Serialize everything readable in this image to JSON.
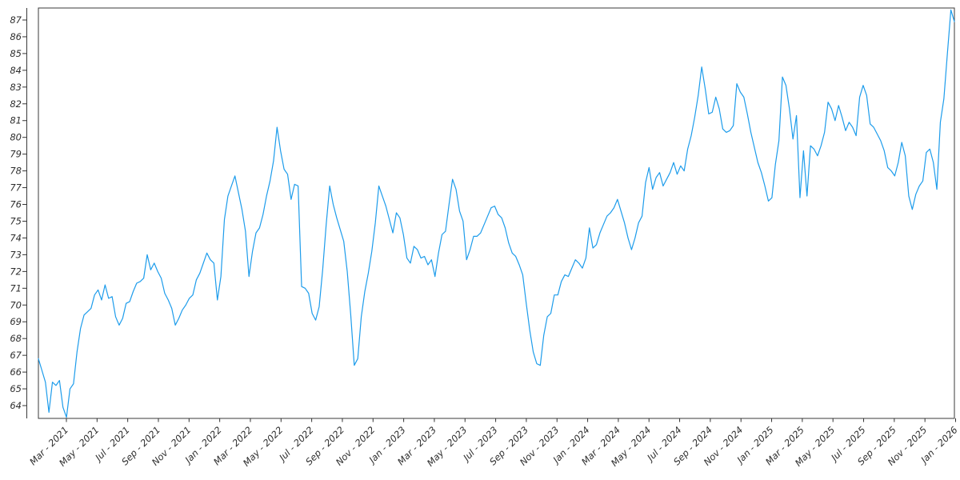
{
  "figure": {
    "background_color": "#ffffff",
    "frame_color": "#3a3a3a",
    "tick_color": "#333333",
    "label_color": "#2e2e2e"
  },
  "chart_data": {
    "type": "line",
    "title": "",
    "subtitle": "",
    "legend": "none",
    "grid": "off",
    "x_axis": {
      "label": "",
      "tick_labels": [
        "Mar - 2021",
        "May - 2021",
        "Jul - 2021",
        "Sep - 2021",
        "Nov - 2021",
        "Jan - 2022",
        "Mar - 2022",
        "May - 2022",
        "Jul - 2022",
        "Sep - 2022",
        "Nov - 2022",
        "Jan - 2023",
        "Mar - 2023",
        "May - 2023",
        "Jul - 2023",
        "Sep - 2023",
        "Nov - 2023",
        "Jan - 2024",
        "Mar - 2024",
        "May - 2024",
        "Jul - 2024",
        "Sep - 2024",
        "Nov - 2024",
        "Jan - 2025",
        "Mar - 2025",
        "May - 2025",
        "Jul - 2025",
        "Sep - 2025",
        "Nov - 2025",
        "Jan - 2026"
      ],
      "tick_label_rotation_deg": 45,
      "style": "italic"
    },
    "y_axis": {
      "label": "",
      "tick_min": 64,
      "tick_max": 87,
      "tick_step": 1,
      "displayed_value_range": [
        63.2,
        87.7
      ],
      "style": "italic, offset spine with outward ticks"
    },
    "series": [
      {
        "name": "value",
        "color": "#1d9ceb",
        "line_width": 1.2,
        "markers": "none",
        "sampling": "weekly",
        "start_date": "2021-01-04",
        "end_date": "2026-01-01",
        "values": [
          66.8,
          66.1,
          65.4,
          63.6,
          65.4,
          65.2,
          65.5,
          63.9,
          63.3,
          65.0,
          65.3,
          67.2,
          68.6,
          69.4,
          69.6,
          69.8,
          70.6,
          70.9,
          70.3,
          71.2,
          70.4,
          70.5,
          69.3,
          68.8,
          69.2,
          70.1,
          70.2,
          70.8,
          71.3,
          71.4,
          71.6,
          73.0,
          72.1,
          72.5,
          72.0,
          71.6,
          70.7,
          70.3,
          69.8,
          68.8,
          69.2,
          69.7,
          70.0,
          70.4,
          70.6,
          71.5,
          71.9,
          72.5,
          73.1,
          72.7,
          72.5,
          70.3,
          71.7,
          75.1,
          76.5,
          77.1,
          77.7,
          76.7,
          75.7,
          74.4,
          71.7,
          73.2,
          74.3,
          74.6,
          75.4,
          76.5,
          77.4,
          78.6,
          80.6,
          79.2,
          78.1,
          77.8,
          76.3,
          77.2,
          77.1,
          71.1,
          71.0,
          70.7,
          69.5,
          69.1,
          69.9,
          72.1,
          74.8,
          77.1,
          76.0,
          75.2,
          74.5,
          73.8,
          72.0,
          69.4,
          66.4,
          66.8,
          69.3,
          70.8,
          71.9,
          73.2,
          74.9,
          77.1,
          76.5,
          75.9,
          75.1,
          74.3,
          75.5,
          75.2,
          74.2,
          72.8,
          72.5,
          73.5,
          73.3,
          72.8,
          72.9,
          72.4,
          72.7,
          71.7,
          73.1,
          74.2,
          74.4,
          76.0,
          77.5,
          76.9,
          75.6,
          75.0,
          72.7,
          73.3,
          74.1,
          74.1,
          74.3,
          74.8,
          75.3,
          75.8,
          75.9,
          75.4,
          75.2,
          74.6,
          73.7,
          73.1,
          72.9,
          72.4,
          71.8,
          70.1,
          68.5,
          67.2,
          66.5,
          66.4,
          68.2,
          69.3,
          69.5,
          70.6,
          70.6,
          71.4,
          71.8,
          71.7,
          72.2,
          72.7,
          72.5,
          72.2,
          72.8,
          74.6,
          73.4,
          73.6,
          74.3,
          74.8,
          75.3,
          75.5,
          75.8,
          76.3,
          75.6,
          74.9,
          74.0,
          73.3,
          74.0,
          74.9,
          75.3,
          77.3,
          78.2,
          76.9,
          77.6,
          77.9,
          77.1,
          77.5,
          77.9,
          78.5,
          77.8,
          78.3,
          78.0,
          79.3,
          80.1,
          81.2,
          82.5,
          84.2,
          82.9,
          81.4,
          81.5,
          82.4,
          81.7,
          80.5,
          80.3,
          80.4,
          80.7,
          83.2,
          82.7,
          82.4,
          81.4,
          80.3,
          79.4,
          78.5,
          77.9,
          77.1,
          76.2,
          76.4,
          78.4,
          79.8,
          83.6,
          83.1,
          81.7,
          79.9,
          81.3,
          76.4,
          79.2,
          76.5,
          79.5,
          79.3,
          78.9,
          79.5,
          80.3,
          82.1,
          81.7,
          81.0,
          81.9,
          81.2,
          80.4,
          80.9,
          80.6,
          80.1,
          82.4,
          83.1,
          82.5,
          80.8,
          80.6,
          80.2,
          79.8,
          79.2,
          78.2,
          78.0,
          77.7,
          78.5,
          79.7,
          78.9,
          76.5,
          75.7,
          76.6,
          77.1,
          77.4,
          79.1,
          79.3,
          78.5,
          76.9,
          80.9,
          82.3,
          85.0,
          87.6,
          86.9
        ]
      }
    ]
  }
}
